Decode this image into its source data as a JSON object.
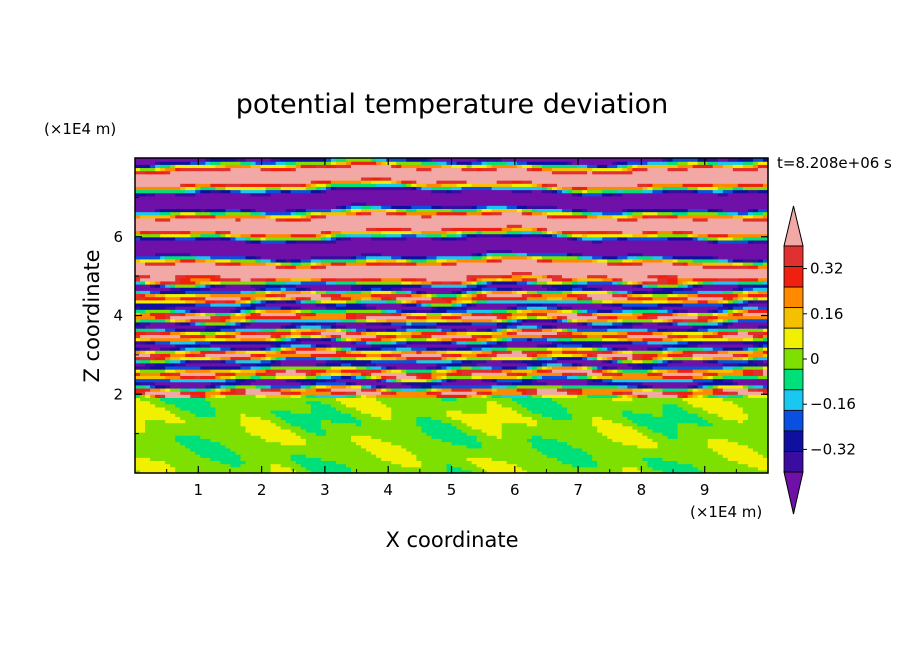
{
  "chart_data": {
    "type": "heatmap",
    "title": "potential temperature deviation",
    "xlabel": "X coordinate",
    "ylabel": "Z coordinate",
    "x_units": "(×1E4 m)",
    "y_units": "(×1E4 m)",
    "time_label": "t=8.208e+06 s",
    "xlim": [
      0,
      10
    ],
    "ylim": [
      0,
      8
    ],
    "x_ticks": [
      1,
      2,
      3,
      4,
      5,
      6,
      7,
      8,
      9
    ],
    "x_tick_labels": [
      "1",
      "2",
      "3",
      "4",
      "5",
      "6",
      "7",
      "8",
      "9"
    ],
    "y_ticks": [
      2,
      4,
      6
    ],
    "y_tick_labels": [
      "2",
      "4",
      "6"
    ],
    "colorbar": {
      "levels": [
        -0.48,
        -0.4,
        -0.32,
        -0.24,
        -0.16,
        -0.08,
        0,
        0.08,
        0.16,
        0.24,
        0.32,
        0.4,
        0.48
      ],
      "colors": [
        "#6f10a8",
        "#3a0da0",
        "#1010a0",
        "#0a50e0",
        "#19c8f0",
        "#00e07a",
        "#7ee000",
        "#f0f000",
        "#f5c000",
        "#ff8a00",
        "#f02010",
        "#e03030",
        "#f2a8a4"
      ],
      "tick_values": [
        0.32,
        0.16,
        0,
        -0.16,
        -0.32
      ],
      "tick_labels": [
        "0.32",
        "0.16",
        "0",
        "−0.16",
        "−0.32"
      ],
      "extend": "both"
    },
    "layers": [
      {
        "z_range": [
          0,
          2
        ],
        "pattern": "green and light-green patches (values near 0 to 0.08)"
      },
      {
        "z_range": [
          2,
          5
        ],
        "pattern": "thin interleaved layers of all colors"
      },
      {
        "z_range": [
          5,
          8
        ],
        "pattern": "alternating pink and purple bands with saturated extremes"
      }
    ]
  }
}
